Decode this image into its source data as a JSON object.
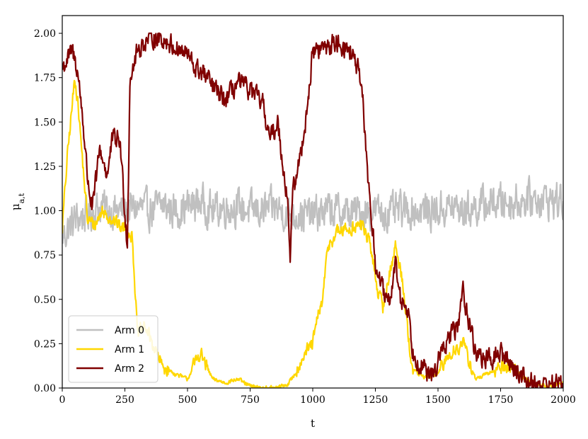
{
  "chart_data": {
    "type": "line",
    "xlabel": "t",
    "ylabel_main": "μ",
    "ylabel_sub": "a,t",
    "xlim": [
      0,
      2000
    ],
    "ylim": [
      0,
      2.1
    ],
    "x_ticks": [
      0,
      250,
      500,
      750,
      1000,
      1250,
      1500,
      1750,
      2000
    ],
    "x_tick_labels": [
      "0",
      "250",
      "500",
      "750",
      "1000",
      "1250",
      "1500",
      "1750",
      "2000"
    ],
    "y_ticks": [
      0,
      0.25,
      0.5,
      0.75,
      1.0,
      1.25,
      1.5,
      1.75,
      2.0
    ],
    "y_tick_labels": [
      "0.00",
      "0.25",
      "0.50",
      "0.75",
      "1.00",
      "1.25",
      "1.50",
      "1.75",
      "2.00"
    ],
    "grid": false,
    "legend_position": "bottom-left",
    "series": [
      {
        "name": "Arm 0",
        "color": "#c0c0c0",
        "noise": 0.09,
        "x": [
          0,
          50,
          100,
          150,
          200,
          250,
          300,
          350,
          400,
          450,
          500,
          550,
          600,
          650,
          700,
          750,
          800,
          850,
          900,
          950,
          1000,
          1050,
          1100,
          1150,
          1200,
          1250,
          1300,
          1350,
          1400,
          1450,
          1500,
          1550,
          1600,
          1650,
          1700,
          1750,
          1800,
          1850,
          1900,
          1950,
          2000
        ],
        "y": [
          0.85,
          0.95,
          0.98,
          1.02,
          1.0,
          1.0,
          1.02,
          1.0,
          1.03,
          1.0,
          1.02,
          1.05,
          1.0,
          1.02,
          1.02,
          1.0,
          1.0,
          1.02,
          0.98,
          0.98,
          0.97,
          1.0,
          1.0,
          0.98,
          1.0,
          1.0,
          0.98,
          1.0,
          1.0,
          1.0,
          1.0,
          1.02,
          1.0,
          1.02,
          1.04,
          1.05,
          1.05,
          1.06,
          1.07,
          1.06,
          1.05
        ]
      },
      {
        "name": "Arm 1",
        "color": "#ffd700",
        "noise": 0.035,
        "x": [
          0,
          20,
          40,
          50,
          60,
          80,
          100,
          130,
          160,
          200,
          240,
          260,
          280,
          300,
          330,
          360,
          400,
          450,
          500,
          550,
          600,
          650,
          700,
          750,
          800,
          850,
          900,
          930,
          960,
          1000,
          1020,
          1040,
          1060,
          1100,
          1150,
          1200,
          1230,
          1260,
          1280,
          1300,
          1330,
          1360,
          1380,
          1400,
          1450,
          1500,
          1550,
          1600,
          1650,
          1700,
          1750,
          1800,
          1850,
          1900,
          1950,
          2000
        ],
        "y": [
          0.9,
          1.3,
          1.6,
          1.75,
          1.65,
          1.3,
          0.95,
          0.92,
          1.0,
          0.95,
          0.9,
          0.9,
          0.85,
          0.3,
          0.35,
          0.25,
          0.12,
          0.08,
          0.05,
          0.2,
          0.05,
          0.03,
          0.05,
          0.01,
          0.0,
          0.0,
          0.02,
          0.08,
          0.18,
          0.25,
          0.4,
          0.5,
          0.8,
          0.88,
          0.9,
          0.92,
          0.8,
          0.55,
          0.45,
          0.6,
          0.8,
          0.6,
          0.3,
          0.1,
          0.06,
          0.08,
          0.2,
          0.25,
          0.05,
          0.08,
          0.12,
          0.12,
          0.05,
          0.02,
          0.01,
          0.03
        ]
      },
      {
        "name": "Arm 2",
        "color": "#800000",
        "noise": 0.05,
        "x": [
          0,
          20,
          40,
          60,
          80,
          100,
          120,
          150,
          180,
          200,
          230,
          250,
          260,
          270,
          300,
          330,
          360,
          400,
          450,
          500,
          530,
          560,
          600,
          650,
          700,
          750,
          800,
          830,
          860,
          900,
          910,
          920,
          950,
          980,
          1000,
          1050,
          1100,
          1150,
          1180,
          1200,
          1220,
          1250,
          1280,
          1300,
          1330,
          1350,
          1380,
          1400,
          1450,
          1470,
          1500,
          1550,
          1580,
          1600,
          1650,
          1700,
          1750,
          1800,
          1850,
          1900,
          1950,
          2000
        ],
        "y": [
          1.8,
          1.85,
          1.9,
          1.8,
          1.55,
          1.2,
          1.0,
          1.35,
          1.2,
          1.4,
          1.4,
          1.0,
          0.8,
          1.75,
          1.9,
          1.95,
          1.98,
          1.97,
          1.92,
          1.88,
          1.8,
          1.78,
          1.7,
          1.62,
          1.72,
          1.68,
          1.6,
          1.4,
          1.5,
          1.05,
          0.75,
          1.1,
          1.3,
          1.6,
          1.9,
          1.92,
          1.95,
          1.9,
          1.8,
          1.6,
          1.2,
          0.7,
          0.55,
          0.45,
          0.7,
          0.5,
          0.45,
          0.2,
          0.1,
          0.05,
          0.15,
          0.3,
          0.35,
          0.55,
          0.2,
          0.15,
          0.2,
          0.12,
          0.05,
          0.02,
          0.02,
          0.03
        ]
      }
    ]
  }
}
